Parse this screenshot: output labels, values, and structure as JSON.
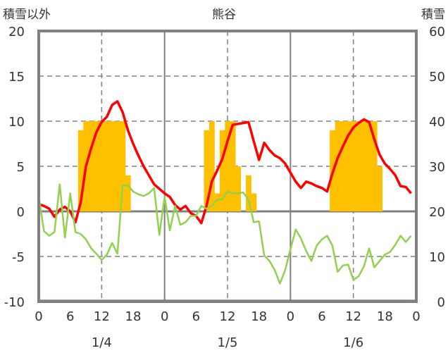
{
  "chart_data": {
    "type": "line",
    "title": "熊谷",
    "left_axis_label": "積雪以外",
    "right_axis_label": "積雪",
    "left_ylim": [
      -10,
      20
    ],
    "left_ticks": [
      20,
      15,
      10,
      5,
      0,
      -5,
      -10
    ],
    "right_ylim": [
      0,
      60
    ],
    "right_ticks": [
      60,
      50,
      40,
      30,
      20,
      10,
      0
    ],
    "x_hours_range": [
      0,
      72
    ],
    "x_tick_labels": [
      "0",
      "6",
      "12",
      "18",
      "0",
      "6",
      "12",
      "18",
      "0",
      "6",
      "12",
      "18",
      "0"
    ],
    "date_labels": [
      "1/4",
      "1/5",
      "1/6"
    ],
    "colors": {
      "temperature": "#ff0000",
      "other": "#92d050",
      "bars": "#ffc000",
      "snow_depth": "#7030a0",
      "frame": "#808080"
    },
    "series": [
      {
        "name": "red line (left axis)",
        "axis": "left",
        "start_hour": 0,
        "values": [
          0.8,
          0.6,
          0.3,
          -0.6,
          0.2,
          0.5,
          0,
          -1.2,
          1.0,
          5.0,
          7.0,
          8.8,
          9.9,
          10.5,
          11.8,
          12.2,
          11.0,
          9.0,
          7.5,
          6.2,
          5.0,
          4.0,
          3.0,
          2.5,
          2.0,
          1.6,
          0.7,
          0.2,
          0.6,
          -0.2,
          -0.5,
          -1.3,
          0.6,
          3.3,
          4.5,
          5.8,
          7.8,
          9.6,
          9.7,
          9.8,
          9.9,
          7.8,
          5.7,
          7.6,
          6.8,
          6.2,
          5.9,
          5.3,
          4.3,
          3.3,
          2.6,
          3.3,
          3.1,
          2.8,
          2.6,
          2.2,
          4.2,
          5.9,
          7.2,
          8.4,
          9.3,
          9.8,
          10.2,
          9.9,
          8.0,
          6.3,
          5.3,
          4.7,
          4.0,
          2.8,
          2.7,
          2.0
        ]
      },
      {
        "name": "green line (left axis)",
        "axis": "left",
        "start_hour": 0,
        "values": [
          1.7,
          -2.2,
          -2.7,
          -2.3,
          3.0,
          -2.9,
          2.0,
          -2.3,
          -2.5,
          -3.1,
          -4.1,
          -4.7,
          -5.4,
          -4.8,
          -3.5,
          -4.7,
          2.9,
          2.9,
          2.2,
          1.9,
          1.7,
          2.0,
          2.6,
          -2.6,
          1.6,
          -2.1,
          0.6,
          -1.5,
          -1.2,
          -0.5,
          -0.5,
          0.6,
          0.3,
          0.6,
          1.3,
          1.3,
          2.2,
          2.0,
          2.0,
          2.1,
          1.3,
          -1.2,
          -1.1,
          -4.9,
          -5.5,
          -6.5,
          -8.0,
          -6.5,
          -4.2,
          -2.0,
          -3.0,
          -4.4,
          -5.5,
          -3.8,
          -3.1,
          -2.7,
          -3.8,
          -6.7,
          -6.0,
          -5.9,
          -7.6,
          -7.2,
          -6.1,
          -4.1,
          -6.2,
          -5.5,
          -4.8,
          -4.5,
          -3.7,
          -2.7,
          -3.4,
          -2.7
        ]
      },
      {
        "name": "bars (left axis)",
        "axis": "left",
        "type": "bar",
        "points": [
          [
            8,
            9
          ],
          [
            9,
            10
          ],
          [
            10,
            10
          ],
          [
            11,
            10
          ],
          [
            12,
            10
          ],
          [
            13,
            10
          ],
          [
            14,
            10
          ],
          [
            15,
            10
          ],
          [
            16,
            10
          ],
          [
            17,
            4
          ],
          [
            32,
            9
          ],
          [
            33,
            10
          ],
          [
            34,
            2
          ],
          [
            35,
            9
          ],
          [
            36,
            10
          ],
          [
            37,
            10
          ],
          [
            38,
            5
          ],
          [
            40,
            4
          ],
          [
            41,
            2
          ],
          [
            56,
            9
          ],
          [
            57,
            10
          ],
          [
            58,
            10
          ],
          [
            59,
            10
          ],
          [
            60,
            10
          ],
          [
            61,
            10
          ],
          [
            62,
            10
          ],
          [
            63,
            10
          ],
          [
            64,
            10
          ],
          [
            65,
            5
          ]
        ]
      },
      {
        "name": "snow depth (right axis)",
        "axis": "right",
        "start_hour": 0,
        "constant": 0
      }
    ]
  }
}
